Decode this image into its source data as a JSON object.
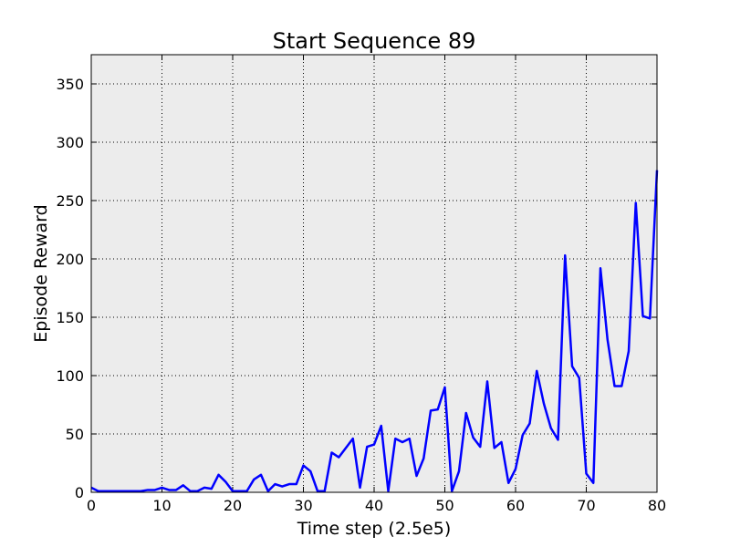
{
  "chart_data": {
    "type": "line",
    "title": "Start Sequence 89",
    "xlabel": "Time step (2.5e5)",
    "ylabel": "Episode Reward",
    "xlim": [
      0,
      80
    ],
    "ylim": [
      0,
      375
    ],
    "xticks": [
      0,
      10,
      20,
      30,
      40,
      50,
      60,
      70,
      80
    ],
    "yticks": [
      0,
      50,
      100,
      150,
      200,
      250,
      300,
      350
    ],
    "grid": true,
    "background_color": "#ececec",
    "series": [
      {
        "color": "#0000ff",
        "x": [
          0,
          1,
          2,
          3,
          4,
          5,
          6,
          7,
          8,
          9,
          10,
          11,
          12,
          13,
          14,
          15,
          16,
          17,
          18,
          19,
          20,
          21,
          22,
          23,
          24,
          25,
          26,
          27,
          28,
          29,
          30,
          31,
          32,
          33,
          34,
          35,
          36,
          37,
          38,
          39,
          40,
          41,
          42,
          43,
          44,
          45,
          46,
          47,
          48,
          49,
          50,
          51,
          52,
          53,
          54,
          55,
          56,
          57,
          58,
          59,
          60,
          61,
          62,
          63,
          64,
          65,
          66,
          67,
          68,
          69,
          70,
          71,
          72,
          73,
          74,
          75,
          76,
          77,
          78,
          79,
          80
        ],
        "values": [
          4,
          1,
          1,
          1,
          1,
          1,
          1,
          1,
          2,
          2,
          4,
          2,
          2,
          6,
          1,
          1,
          4,
          3,
          15,
          9,
          1,
          1,
          1,
          11,
          15,
          1,
          7,
          5,
          7,
          7,
          23,
          18,
          1,
          1,
          34,
          30,
          38,
          46,
          4,
          39,
          41,
          57,
          1,
          46,
          43,
          46,
          14,
          29,
          70,
          71,
          90,
          1,
          18,
          68,
          47,
          39,
          95,
          38,
          43,
          8,
          20,
          49,
          59,
          104,
          76,
          55,
          45,
          203,
          108,
          98,
          16,
          8,
          192,
          131,
          91,
          91,
          121,
          248,
          151,
          149,
          276
        ]
      }
    ]
  }
}
